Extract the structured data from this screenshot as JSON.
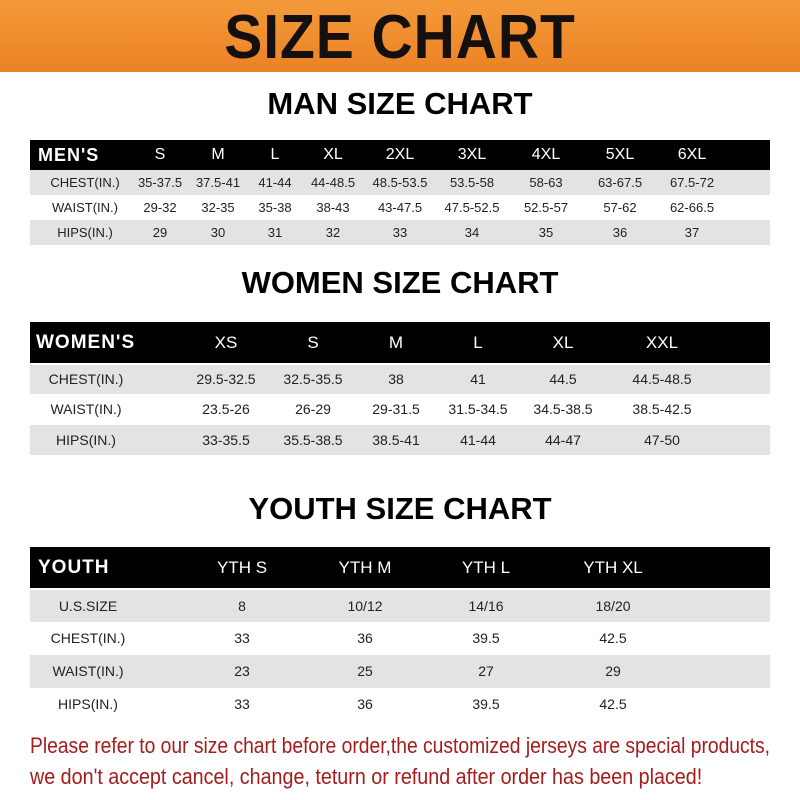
{
  "banner": {
    "title": "SIZE CHART",
    "color": "#ef8a2b"
  },
  "men": {
    "title": "MAN SIZE CHART",
    "header": [
      "MEN'S",
      "S",
      "M",
      "L",
      "XL",
      "2XL",
      "3XL",
      "4XL",
      "5XL",
      "6XL"
    ],
    "rows": [
      [
        "CHEST(IN.)",
        "35-37.5",
        "37.5-41",
        "41-44",
        "44-48.5",
        "48.5-53.5",
        "53.5-58",
        "58-63",
        "63-67.5",
        "67.5-72"
      ],
      [
        "WAIST(IN.)",
        "29-32",
        "32-35",
        "35-38",
        "38-43",
        "43-47.5",
        "47.5-52.5",
        "52.5-57",
        "57-62",
        "62-66.5"
      ],
      [
        "HIPS(IN.)",
        "29",
        "30",
        "31",
        "32",
        "33",
        "34",
        "35",
        "36",
        "37"
      ]
    ]
  },
  "women": {
    "title": "WOMEN SIZE CHART",
    "header": [
      "WOMEN'S",
      "XS",
      "S",
      "M",
      "L",
      "XL",
      "XXL"
    ],
    "rows": [
      [
        "CHEST(IN.)",
        "29.5-32.5",
        "32.5-35.5",
        "38",
        "41",
        "44.5",
        "44.5-48.5"
      ],
      [
        "WAIST(IN.)",
        "23.5-26",
        "26-29",
        "29-31.5",
        "31.5-34.5",
        "34.5-38.5",
        "38.5-42.5"
      ],
      [
        "HIPS(IN.)",
        "33-35.5",
        "35.5-38.5",
        "38.5-41",
        "41-44",
        "44-47",
        "47-50"
      ]
    ]
  },
  "youth": {
    "title": "YOUTH SIZE CHART",
    "header": [
      "YOUTH",
      "YTH S",
      "YTH M",
      "YTH L",
      "YTH XL"
    ],
    "rows": [
      [
        "U.S.SIZE",
        "8",
        "10/12",
        "14/16",
        "18/20"
      ],
      [
        "CHEST(IN.)",
        "33",
        "36",
        "39.5",
        "42.5"
      ],
      [
        "WAIST(IN.)",
        "23",
        "25",
        "27",
        "29"
      ],
      [
        "HIPS(IN.)",
        "33",
        "36",
        "39.5",
        "42.5"
      ]
    ]
  },
  "note": {
    "line1": "Please refer to our size chart before order,the customized jerseys are special products,",
    "line2": "we don't accept cancel, change, teturn or refund after order has been placed!",
    "color": "#a51c1c"
  }
}
